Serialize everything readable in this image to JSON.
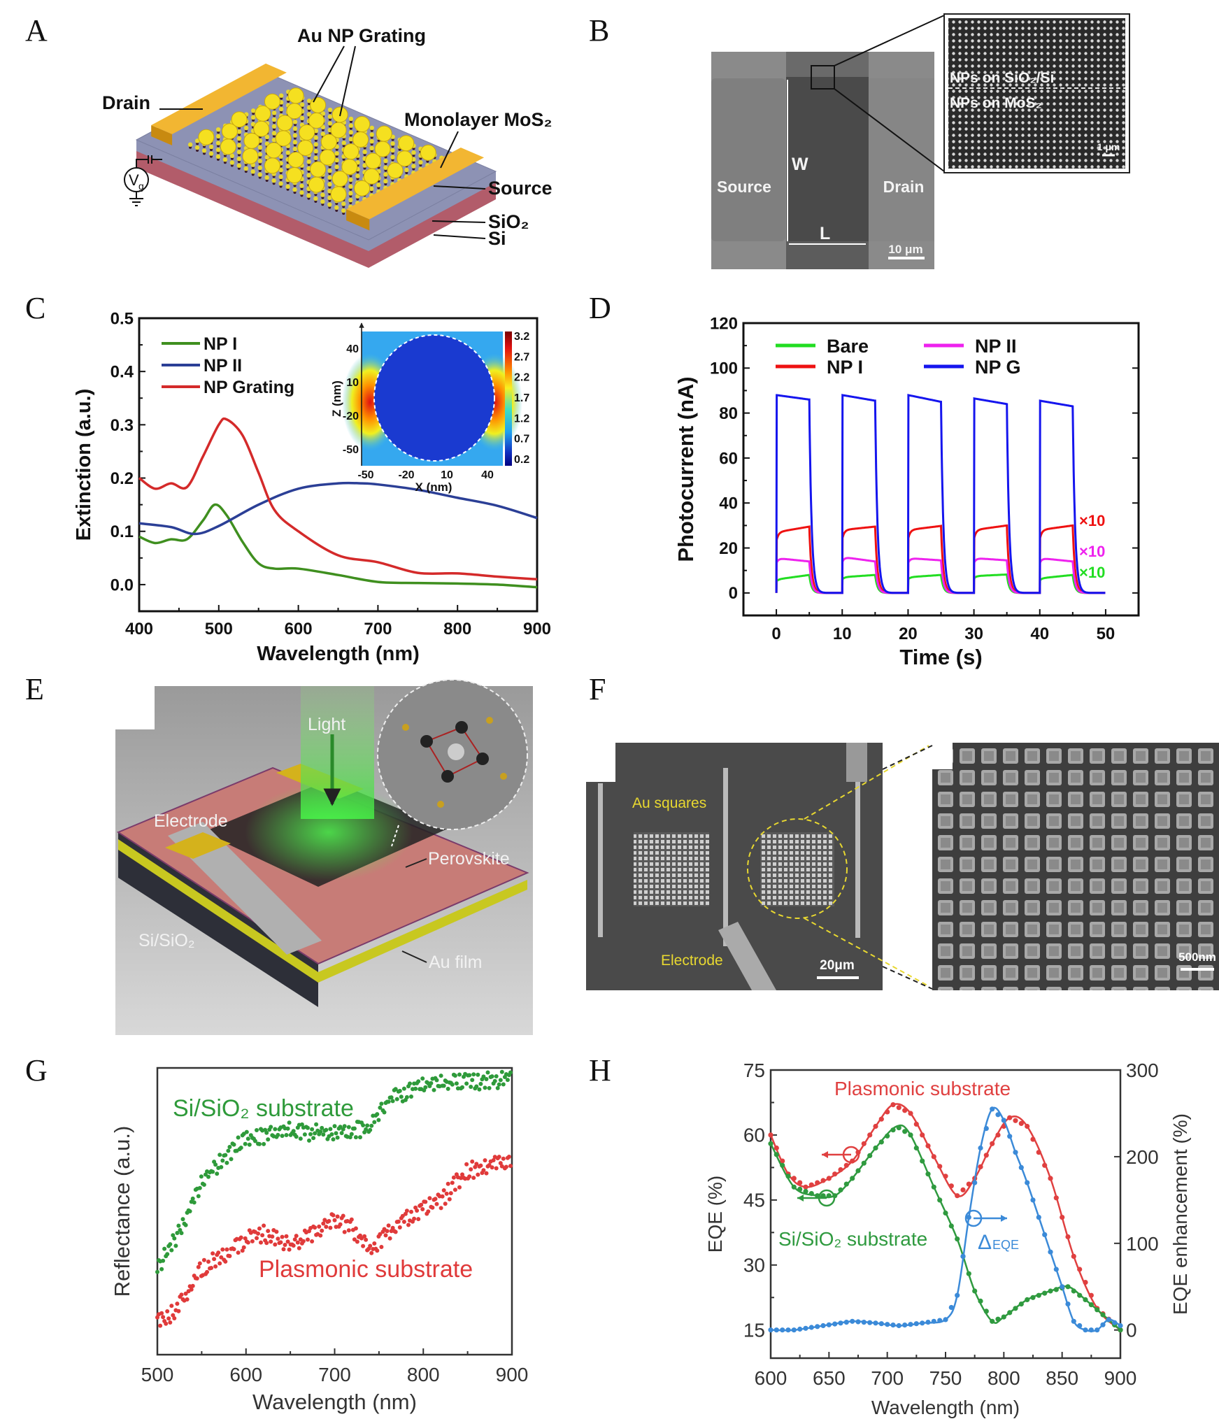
{
  "panels": {
    "a": "A",
    "b": "B",
    "c": "C",
    "d": "D",
    "e": "E",
    "f": "F",
    "g": "G",
    "h": "H"
  },
  "panel_a": {
    "au_np_grating": "Au NP Grating",
    "drain": "Drain",
    "monolayer": "Monolayer MoS₂",
    "source": "Source",
    "sio2": "SiO₂",
    "si": "Si",
    "vg_main": "V",
    "vg_sub": "g",
    "colors": {
      "gold": "#f2b632",
      "particle": "#f5e020",
      "sio2": "#8d92b4",
      "si": "#b25c6a"
    }
  },
  "panel_b": {
    "source": "Source",
    "drain": "Drain",
    "w": "W",
    "l": "L",
    "scale": "10 μm",
    "inset_top": "NPs on SiO₂/Si",
    "inset_bottom": "NPs on MoS₂",
    "inset_scale": "1 μm"
  },
  "panel_e": {
    "light": "Light",
    "electrode": "Electrode",
    "perovskite": "Perovskite",
    "substrate": "Si/SiO₂",
    "au_film": "Au film"
  },
  "panel_f": {
    "au_squares": "Au squares",
    "electrode": "Electrode",
    "scale": "20μm",
    "zoom_scale": "500nm"
  },
  "chart_data": [
    {
      "panel": "C",
      "type": "line",
      "xlabel": "Wavelength (nm)",
      "ylabel": "Extinction (a.u.)",
      "xlim": [
        400,
        900
      ],
      "ylim": [
        -0.05,
        0.5
      ],
      "xticks": [
        400,
        500,
        600,
        700,
        800,
        900
      ],
      "yticks": [
        0.0,
        0.1,
        0.2,
        0.3,
        0.4,
        0.5
      ],
      "ytick_labels": [
        "0.0",
        "0.1",
        "0.2",
        "0.3",
        "0.4",
        "0.5"
      ],
      "grid": false,
      "legend_position": "top-left",
      "series": [
        {
          "name": "NP I",
          "color": "#3f8f1f",
          "x": [
            400,
            420,
            440,
            460,
            480,
            495,
            510,
            530,
            550,
            570,
            600,
            650,
            700,
            750,
            800,
            850,
            900
          ],
          "y": [
            0.09,
            0.078,
            0.085,
            0.085,
            0.12,
            0.15,
            0.13,
            0.08,
            0.04,
            0.03,
            0.03,
            0.018,
            0.005,
            0.003,
            0.002,
            0.0,
            -0.005
          ]
        },
        {
          "name": "NP II",
          "color": "#2b3f96",
          "x": [
            400,
            440,
            470,
            500,
            550,
            600,
            650,
            680,
            700,
            750,
            800,
            850,
            900
          ],
          "y": [
            0.115,
            0.108,
            0.095,
            0.11,
            0.15,
            0.18,
            0.19,
            0.19,
            0.188,
            0.178,
            0.163,
            0.148,
            0.125
          ]
        },
        {
          "name": "NP Grating",
          "color": "#d42a2a",
          "x": [
            400,
            420,
            440,
            460,
            480,
            500,
            510,
            530,
            550,
            570,
            600,
            650,
            700,
            750,
            800,
            850,
            900
          ],
          "y": [
            0.2,
            0.18,
            0.19,
            0.183,
            0.24,
            0.3,
            0.31,
            0.28,
            0.21,
            0.14,
            0.1,
            0.055,
            0.042,
            0.022,
            0.021,
            0.015,
            0.01
          ]
        }
      ]
    },
    {
      "panel": "C-inset",
      "type": "heatmap",
      "xlabel": "X (nm)",
      "ylabel": "Z (nm)",
      "xticks": [
        -50,
        -20,
        10,
        40
      ],
      "yticks": [
        40,
        10,
        -20,
        -50
      ],
      "colorbar_ticks": [
        "3.2",
        "2.7",
        "2.2",
        "1.7",
        "1.2",
        "0.7",
        "0.2"
      ],
      "colorscale": [
        "#7a0000",
        "#e01010",
        "#ff9000",
        "#f8f020",
        "#40e0c0",
        "#20a0f0",
        "#1030c0",
        "#000080"
      ]
    },
    {
      "panel": "D",
      "type": "line",
      "xlabel": "Time (s)",
      "ylabel": "Photocurrent (nA)",
      "xlim": [
        -5,
        55
      ],
      "ylim": [
        -10,
        120
      ],
      "xticks": [
        0,
        10,
        20,
        30,
        40,
        50
      ],
      "yticks": [
        0,
        20,
        40,
        60,
        80,
        100,
        120
      ],
      "grid": false,
      "legend_position": "top",
      "pulse_starts": [
        0,
        10,
        20,
        30,
        40
      ],
      "pulse_on_duration": 5,
      "series": [
        {
          "name": "Bare",
          "color": "#22dd22",
          "scale_label": "×10",
          "on_start": [
            6,
            7,
            7,
            7.5,
            6.5
          ],
          "on_end": [
            8,
            8,
            8,
            8.2,
            8
          ]
        },
        {
          "name": "NP I",
          "color": "#ee1111",
          "scale_label": "×10",
          "on_start": [
            27,
            28,
            28,
            28,
            28
          ],
          "on_end": [
            29.5,
            29.5,
            29.8,
            30,
            30
          ]
        },
        {
          "name": "NP II",
          "color": "#ee22ee",
          "scale_label": "×10",
          "on_start": [
            15.5,
            16,
            15.5,
            15.5,
            15.5
          ],
          "on_end": [
            14,
            14,
            14.5,
            14.5,
            14
          ]
        },
        {
          "name": "NP G",
          "color": "#1515ee",
          "on_start": [
            88,
            88,
            88,
            86.5,
            85.5
          ],
          "on_end": [
            86,
            85.5,
            85,
            84,
            83
          ]
        }
      ]
    },
    {
      "panel": "G",
      "type": "scatter",
      "xlabel": "Wavelength (nm)",
      "ylabel": "Reflectance (a.u.)",
      "xlim": [
        500,
        900
      ],
      "ylim": [
        0,
        1
      ],
      "xticks": [
        500,
        600,
        700,
        800,
        900
      ],
      "yticks": [],
      "grid": false,
      "series": [
        {
          "name": "Si/SiO₂ substrate",
          "color": "#2e9a3a",
          "x": [
            500,
            520,
            550,
            580,
            600,
            630,
            650,
            700,
            740,
            760,
            800,
            850,
            900
          ],
          "y": [
            0.3,
            0.4,
            0.6,
            0.7,
            0.75,
            0.77,
            0.78,
            0.77,
            0.79,
            0.89,
            0.94,
            0.95,
            0.96
          ]
        },
        {
          "name": "Plasmonic substrate",
          "color": "#e03a3a",
          "x": [
            500,
            520,
            550,
            580,
            600,
            620,
            650,
            680,
            700,
            720,
            740,
            760,
            800,
            820,
            850,
            900
          ],
          "y": [
            0.12,
            0.15,
            0.3,
            0.36,
            0.4,
            0.42,
            0.38,
            0.43,
            0.47,
            0.44,
            0.36,
            0.43,
            0.51,
            0.54,
            0.64,
            0.68
          ]
        }
      ]
    },
    {
      "panel": "H",
      "type": "line",
      "xlabel": "Wavelength (nm)",
      "ylabel": "EQE (%)",
      "ylabel_right": "EQE enhancement (%)",
      "xlim": [
        600,
        900
      ],
      "ylim": [
        8.5,
        75
      ],
      "ylim_right_mapping": {
        "0": 15,
        "300": 75
      },
      "xticks": [
        600,
        650,
        700,
        750,
        800,
        850,
        900
      ],
      "yticks": [
        15,
        30,
        45,
        60,
        75
      ],
      "yticks_right": [
        0,
        100,
        200,
        300
      ],
      "grid": false,
      "series": [
        {
          "name": "Plasmonic substrate",
          "color": "#e04040",
          "axis": "left",
          "x": [
            600,
            615,
            630,
            650,
            670,
            690,
            705,
            720,
            740,
            760,
            775,
            790,
            805,
            820,
            840,
            860,
            880,
            900
          ],
          "y": [
            60,
            51,
            48,
            50,
            54,
            62,
            67,
            65,
            55,
            46,
            50,
            58,
            64,
            62,
            50,
            32,
            20,
            15
          ]
        },
        {
          "name": "Si/SiO₂ substrate",
          "color": "#2f9a3f",
          "axis": "left",
          "x": [
            600,
            620,
            640,
            655,
            670,
            690,
            708,
            720,
            740,
            760,
            775,
            790,
            800,
            820,
            840,
            855,
            870,
            900
          ],
          "y": [
            58,
            48,
            46,
            46,
            50,
            57,
            62,
            60,
            48,
            36,
            24,
            17,
            18,
            22,
            24,
            25,
            22,
            15
          ]
        },
        {
          "name": "ΔEQE",
          "color": "#3b8ad8",
          "axis": "right",
          "x": [
            600,
            620,
            650,
            670,
            690,
            710,
            730,
            750,
            760,
            770,
            780,
            790,
            800,
            810,
            820,
            840,
            850,
            860,
            870,
            880,
            890,
            900
          ],
          "y": [
            0,
            0,
            6,
            10,
            8,
            5,
            8,
            12,
            40,
            130,
            210,
            255,
            242,
            205,
            170,
            90,
            50,
            10,
            0,
            0,
            12,
            5
          ]
        }
      ],
      "annotations": {
        "plasmonic": "Plasmonic substrate",
        "sisio2": "Si/SiO₂ substrate",
        "delta": "Δ",
        "delta_sub": "EQE"
      }
    }
  ]
}
